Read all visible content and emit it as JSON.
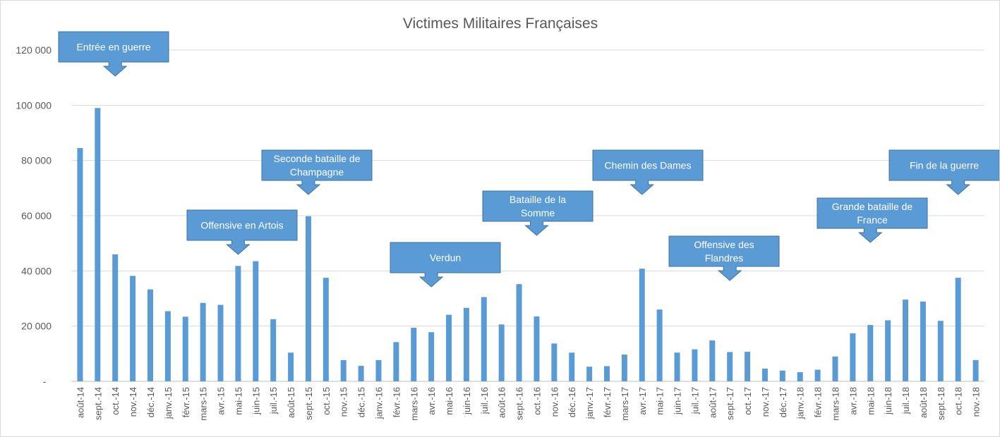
{
  "chart_data": {
    "type": "bar",
    "title": "Victimes Militaires Françaises",
    "xlabel": "",
    "ylabel": "",
    "ylim": [
      0,
      120000
    ],
    "ytick_values": [
      0,
      20000,
      40000,
      60000,
      80000,
      100000,
      120000
    ],
    "ytick_labels": [
      "-",
      "20 000",
      "40 000",
      "60 000",
      "80 000",
      "100 000",
      "120 000"
    ],
    "grid": true,
    "legend": "none",
    "bar_color": "#5b9bd5",
    "categories": [
      "août-14",
      "sept.-14",
      "oct.-14",
      "nov.-14",
      "déc.-14",
      "janv.-15",
      "févr.-15",
      "mars-15",
      "avr.-15",
      "mai-15",
      "juin-15",
      "juil.-15",
      "août-15",
      "sept.-15",
      "oct.-15",
      "nov.-15",
      "déc.-15",
      "janv.-16",
      "févr.-16",
      "mars-16",
      "avr.-16",
      "mai-16",
      "juin-16",
      "juil.-16",
      "août-16",
      "sept.-16",
      "oct.-16",
      "nov.-16",
      "déc.-16",
      "janv.-17",
      "févr.-17",
      "mars-17",
      "avr.-17",
      "mai-17",
      "juin-17",
      "juil.-17",
      "août-17",
      "sept.-17",
      "oct.-17",
      "nov.-17",
      "déc.-17",
      "janv.-18",
      "févr.-18",
      "mars-18",
      "avr.-18",
      "mai-18",
      "juin-18",
      "juil.-18",
      "août-18",
      "sept.-18",
      "oct.-18",
      "nov.-18"
    ],
    "values": [
      84500,
      99000,
      46000,
      38200,
      33300,
      25400,
      23400,
      28400,
      27700,
      41800,
      43500,
      22500,
      10400,
      59800,
      37500,
      7700,
      5600,
      7700,
      14200,
      19400,
      17800,
      24100,
      26600,
      30500,
      20600,
      35200,
      23500,
      13700,
      10400,
      5300,
      5500,
      9700,
      40800,
      26000,
      10400,
      11600,
      14800,
      10600,
      10700,
      4600,
      3900,
      3300,
      4200,
      9000,
      17400,
      20400,
      22100,
      29600,
      28900,
      21900,
      37500,
      7700
    ],
    "annotations": [
      {
        "lines": [
          "Entrée en guerre"
        ],
        "category": "oct.-14"
      },
      {
        "lines": [
          "Offensive en Artois"
        ],
        "category": "mai-15"
      },
      {
        "lines": [
          "Seconde bataille de",
          "Champagne"
        ],
        "category": "sept.-15"
      },
      {
        "lines": [
          "Verdun"
        ],
        "category": "avr.-16"
      },
      {
        "lines": [
          "Bataille de la",
          "Somme"
        ],
        "category": "oct.-16"
      },
      {
        "lines": [
          "Chemin des Dames"
        ],
        "category": "avr.-17"
      },
      {
        "lines": [
          "Offensive des",
          "Flandres"
        ],
        "category": "sept.-17"
      },
      {
        "lines": [
          "Grande bataille de",
          "France"
        ],
        "category": "mai-18"
      },
      {
        "lines": [
          "Fin de la guerre"
        ],
        "category": "oct.-18"
      }
    ],
    "callout_color": "#5b9bd5",
    "callout_text_color": "#ffffff"
  }
}
